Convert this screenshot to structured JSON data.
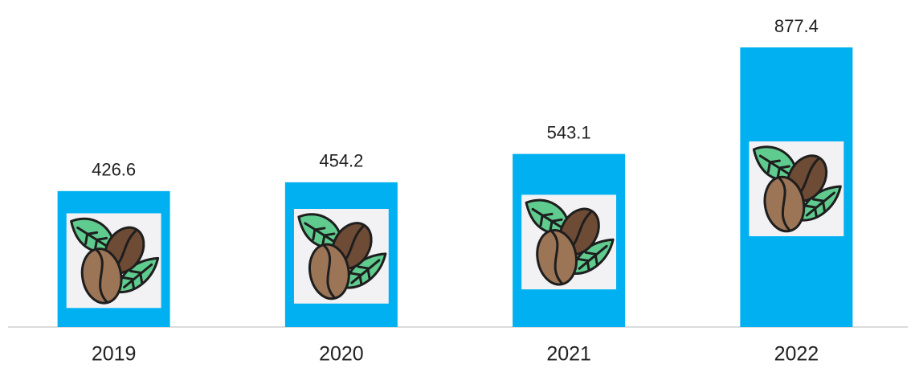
{
  "chart_data": {
    "type": "bar",
    "categories": [
      "2019",
      "2020",
      "2021",
      "2022"
    ],
    "values": [
      426.6,
      454.2,
      543.1,
      877.4
    ],
    "color": "#00b0f0"
  }
}
